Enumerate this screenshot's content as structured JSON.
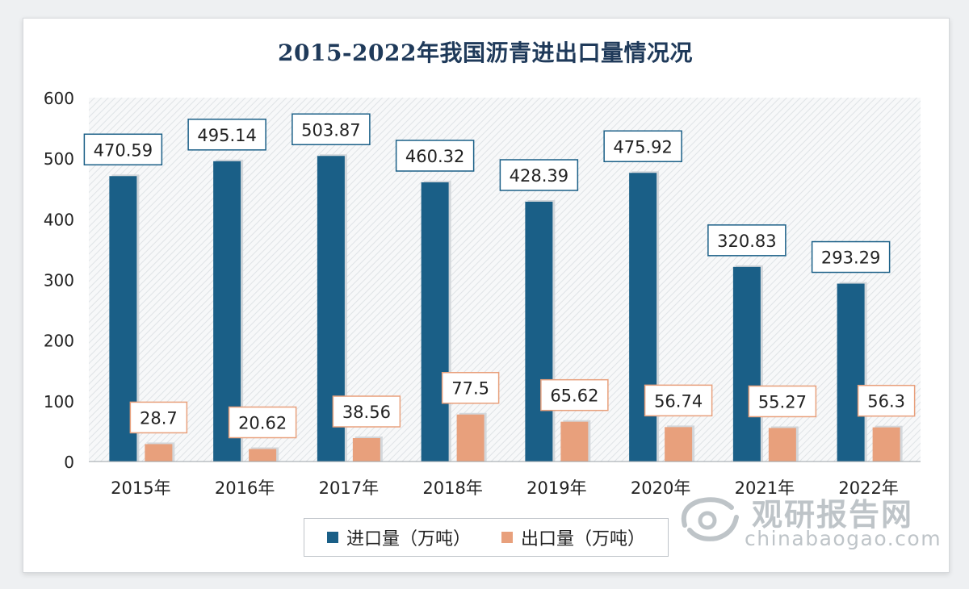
{
  "chart_data": {
    "type": "bar",
    "title": "2015-2022年我国沥青进出口量情况况",
    "categories": [
      "2015年",
      "2016年",
      "2017年",
      "2018年",
      "2019年",
      "2020年",
      "2021年",
      "2022年"
    ],
    "series": [
      {
        "name": "进口量（万吨）",
        "color": "#1a5f87",
        "values": [
          470.59,
          495.14,
          503.87,
          460.32,
          428.39,
          475.92,
          320.83,
          293.29
        ],
        "labels": [
          "470.59",
          "495.14",
          "503.87",
          "460.32",
          "428.39",
          "475.92",
          "320.83",
          "293.29"
        ]
      },
      {
        "name": "出口量（万吨）",
        "color": "#e8a07c",
        "values": [
          28.7,
          20.62,
          38.56,
          77.5,
          65.62,
          56.74,
          55.27,
          56.3
        ],
        "labels": [
          "28.7",
          "20.62",
          "38.56",
          "77.5",
          "65.62",
          "56.74",
          "55.27",
          "56.3"
        ]
      }
    ],
    "ylim": [
      0,
      600
    ],
    "yticks": [
      "0",
      "100",
      "200",
      "300",
      "400",
      "500",
      "600"
    ],
    "grid": false,
    "legend_position": "bottom"
  },
  "watermark": {
    "name": "观研报告网",
    "site": "chinabaogao.com"
  }
}
